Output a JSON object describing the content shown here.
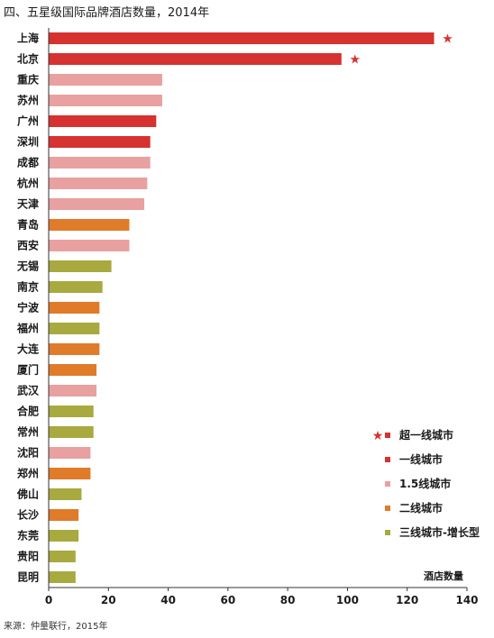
{
  "chart_data": {
    "type": "bar",
    "orientation": "horizontal",
    "title": "四、五星级国际品牌酒店数量，2014年",
    "source": "来源：仲量联行，2015年",
    "xlabel": "酒店数量",
    "xlim": [
      0,
      140
    ],
    "xticks": [
      0,
      20,
      40,
      60,
      80,
      100,
      120,
      140
    ],
    "categories": [
      "上海",
      "北京",
      "重庆",
      "苏州",
      "广州",
      "深圳",
      "成都",
      "杭州",
      "天津",
      "青岛",
      "西安",
      "无锡",
      "南京",
      "宁波",
      "福州",
      "大连",
      "厦门",
      "武汉",
      "合肥",
      "常州",
      "沈阳",
      "郑州",
      "佛山",
      "长沙",
      "东莞",
      "贵阳",
      "昆明"
    ],
    "values": [
      129,
      98,
      38,
      38,
      36,
      34,
      34,
      33,
      32,
      27,
      27,
      21,
      18,
      17,
      17,
      17,
      16,
      16,
      15,
      15,
      14,
      14,
      11,
      10,
      10,
      9,
      9
    ],
    "tiers": [
      "超一线城市",
      "超一线城市",
      "1.5线城市",
      "1.5线城市",
      "一线城市",
      "一线城市",
      "1.5线城市",
      "1.5线城市",
      "1.5线城市",
      "二线城市",
      "1.5线城市",
      "三线城市-增长型",
      "三线城市-增长型",
      "二线城市",
      "三线城市-增长型",
      "二线城市",
      "二线城市",
      "1.5线城市",
      "三线城市-增长型",
      "三线城市-增长型",
      "1.5线城市",
      "二线城市",
      "三线城市-增长型",
      "二线城市",
      "三线城市-增长型",
      "三线城市-增长型",
      "三线城市-增长型"
    ],
    "legend": [
      {
        "name": "超一线城市",
        "color": "#d63230",
        "star": true
      },
      {
        "name": "一线城市",
        "color": "#d63230",
        "star": false
      },
      {
        "name": "1.5线城市",
        "color": "#e8a0a0",
        "star": false
      },
      {
        "name": "二线城市",
        "color": "#e07b2a",
        "star": false
      },
      {
        "name": "三线城市-增长型",
        "color": "#a8a93f",
        "star": false
      }
    ],
    "legend_position": "bottom-right",
    "grid": false
  }
}
